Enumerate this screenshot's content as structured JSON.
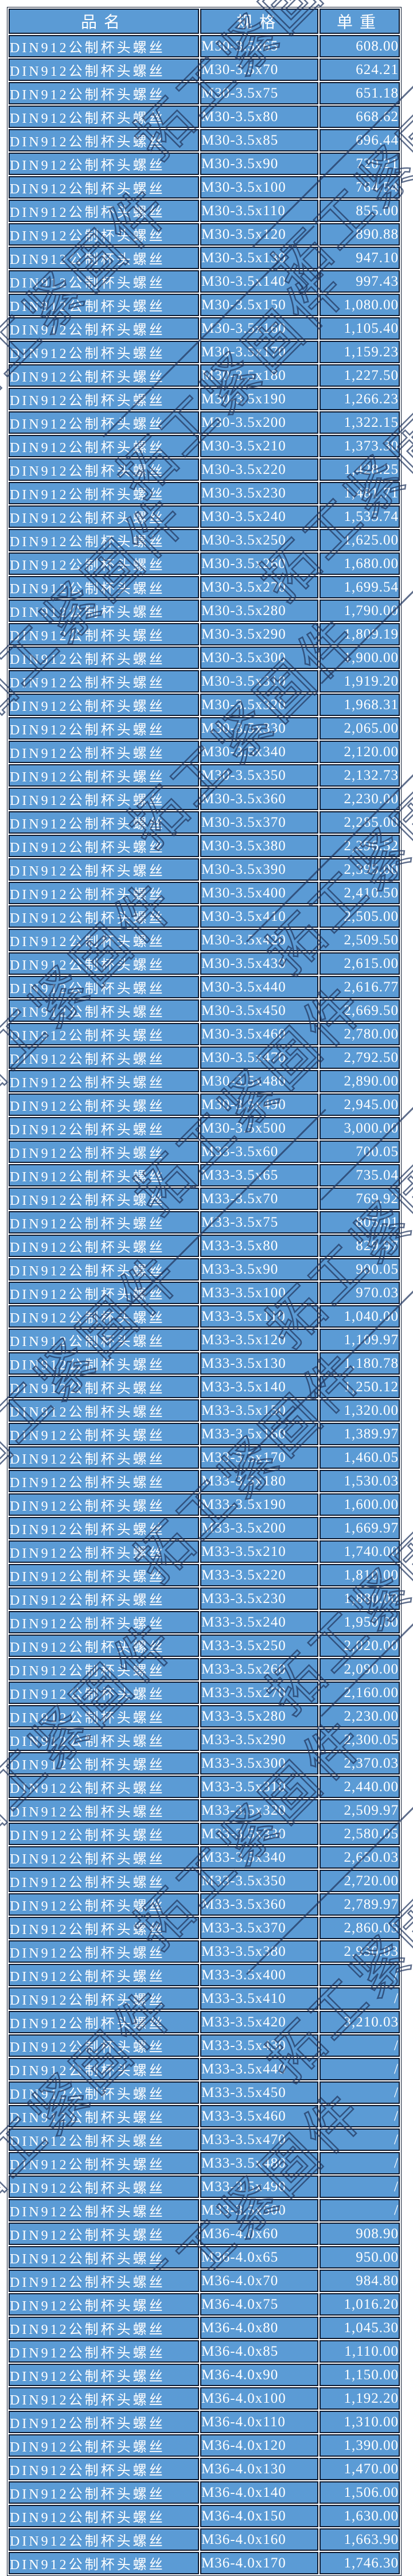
{
  "colors": {
    "cell_blue": "#5b9bd5",
    "border_dark": "#0e1a30",
    "text_white": "#ffffff",
    "watermark_navy": "#22375f",
    "page_background": "#ffffff"
  },
  "watermark": {
    "text": "拓工紧固件"
  },
  "table": {
    "headers": [
      "品名",
      "规格",
      "单重"
    ],
    "product_name": "DIN912公制杯头螺丝",
    "rows": [
      [
        "M30-3.5x65",
        "608.00"
      ],
      [
        "M30-3.5x70",
        "624.21"
      ],
      [
        "M30-3.5x75",
        "651.18"
      ],
      [
        "M30-3.5x80",
        "668.62"
      ],
      [
        "M30-3.5x85",
        "696.44"
      ],
      [
        "M30-3.5x90",
        "720.21"
      ],
      [
        "M30-3.5x100",
        "764.54"
      ],
      [
        "M30-3.5x110",
        "855.00"
      ],
      [
        "M30-3.5x120",
        "890.88"
      ],
      [
        "M30-3.5x130",
        "947.10"
      ],
      [
        "M30-3.5x140",
        "997.43"
      ],
      [
        "M30-3.5x150",
        "1,080.00"
      ],
      [
        "M30-3.5x160",
        "1,105.40"
      ],
      [
        "M30-3.5x170",
        "1,159.23"
      ],
      [
        "M30-3.5x180",
        "1,227.50"
      ],
      [
        "M30-3.5x190",
        "1,266.23"
      ],
      [
        "M30-3.5x200",
        "1,322.15"
      ],
      [
        "M30-3.5x210",
        "1,373.30"
      ],
      [
        "M30-3.5x220",
        "1,428.25"
      ],
      [
        "M30-3.5x230",
        "1,481.71"
      ],
      [
        "M30-3.5x240",
        "1,535.74"
      ],
      [
        "M30-3.5x250",
        "1,625.00"
      ],
      [
        "M30-3.5x260",
        "1,680.00"
      ],
      [
        "M30-3.5x270",
        "1,699.54"
      ],
      [
        "M30-3.5x280",
        "1,790.00"
      ],
      [
        "M30-3.5x290",
        "1,809.19"
      ],
      [
        "M30-3.5x300",
        "1,900.00"
      ],
      [
        "M30-3.5x310",
        "1,919.20"
      ],
      [
        "M30-3.5x320",
        "1,968.31"
      ],
      [
        "M30-3.5x330",
        "2,065.00"
      ],
      [
        "M30-3.5x340",
        "2,120.00"
      ],
      [
        "M30-3.5x350",
        "2,132.73"
      ],
      [
        "M30-3.5x360",
        "2,230.00"
      ],
      [
        "M30-3.5x370",
        "2,285.00"
      ],
      [
        "M30-3.5x380",
        "2,296.52"
      ],
      [
        "M30-3.5x390",
        "2,395.00"
      ],
      [
        "M30-3.5x400",
        "2,410.50"
      ],
      [
        "M30-3.5x410",
        "2,505.00"
      ],
      [
        "M30-3.5x420",
        "2,509.50"
      ],
      [
        "M30-3.5x430",
        "2,615.00"
      ],
      [
        "M30-3.5x440",
        "2,616.77"
      ],
      [
        "M30-3.5x450",
        "2,669.50"
      ],
      [
        "M30-3.5x460",
        "2,780.00"
      ],
      [
        "M30-3.5x470",
        "2,792.50"
      ],
      [
        "M30-3.5x480",
        "2,890.00"
      ],
      [
        "M30-3.5x490",
        "2,945.00"
      ],
      [
        "M30-3.5x500",
        "3,000.00"
      ],
      [
        "M33-3.5x60",
        "700.05"
      ],
      [
        "M33-3.5x65",
        "735.04"
      ],
      [
        "M33-3.5x70",
        "769.92"
      ],
      [
        "M33-3.5x75",
        "805.01"
      ],
      [
        "M33-3.5x80",
        "829.97"
      ],
      [
        "M33-3.5x90",
        "900.05"
      ],
      [
        "M33-3.5x100",
        "970.03"
      ],
      [
        "M33-3.5x110",
        "1,040.00"
      ],
      [
        "M33-3.5x120",
        "1,109.97"
      ],
      [
        "M33-3.5x130",
        "1,180.78"
      ],
      [
        "M33-3.5x140",
        "1,250.12"
      ],
      [
        "M33-3.5x150",
        "1,320.00"
      ],
      [
        "M33-3.5x160",
        "1,389.97"
      ],
      [
        "M33-3.5x170",
        "1,460.05"
      ],
      [
        "M33-3.5x180",
        "1,530.03"
      ],
      [
        "M33-3.5x190",
        "1,600.00"
      ],
      [
        "M33-3.5x200",
        "1,669.97"
      ],
      [
        "M33-3.5x210",
        "1,740.00"
      ],
      [
        "M33-3.5x220",
        "1,810.00"
      ],
      [
        "M33-3.5x230",
        "1,880.00"
      ],
      [
        "M33-3.5x240",
        "1,950.00"
      ],
      [
        "M33-3.5x250",
        "2,020.00"
      ],
      [
        "M33-3.5x260",
        "2,090.00"
      ],
      [
        "M33-3.5x270",
        "2,160.00"
      ],
      [
        "M33-3.5x280",
        "2,230.00"
      ],
      [
        "M33-3.5x290",
        "2,300.05"
      ],
      [
        "M33-3.5x300",
        "2,370.03"
      ],
      [
        "M33-3.5x310",
        "2,440.00"
      ],
      [
        "M33-3.5x320",
        "2,509.97"
      ],
      [
        "M33-3.5x330",
        "2,580.05"
      ],
      [
        "M33-3.5x340",
        "2,650.03"
      ],
      [
        "M33-3.5x350",
        "2,720.00"
      ],
      [
        "M33-3.5x360",
        "2,789.97"
      ],
      [
        "M33-3.5x370",
        "2,860.05"
      ],
      [
        "M33-3.5x380",
        "2,930.03"
      ],
      [
        "M33-3.5x400",
        "/"
      ],
      [
        "M33-3.5x410",
        "/"
      ],
      [
        "M33-3.5x420",
        "3,210.03"
      ],
      [
        "M33-3.5x430",
        "/"
      ],
      [
        "M33-3.5x440",
        "/"
      ],
      [
        "M33-3.5x450",
        "/"
      ],
      [
        "M33-3.5x460",
        "/"
      ],
      [
        "M33-3.5x470",
        "/"
      ],
      [
        "M33-3.5x480",
        "/"
      ],
      [
        "M33-3.5x490",
        "/"
      ],
      [
        "M33-3.5x500",
        "/"
      ],
      [
        "M36-4.0x60",
        "908.90"
      ],
      [
        "M36-4.0x65",
        "950.00"
      ],
      [
        "M36-4.0x70",
        "984.80"
      ],
      [
        "M36-4.0x75",
        "1,016.20"
      ],
      [
        "M36-4.0x80",
        "1,045.30"
      ],
      [
        "M36-4.0x85",
        "1,110.00"
      ],
      [
        "M36-4.0x90",
        "1,150.00"
      ],
      [
        "M36-4.0x100",
        "1,192.20"
      ],
      [
        "M36-4.0x110",
        "1,310.00"
      ],
      [
        "M36-4.0x120",
        "1,390.00"
      ],
      [
        "M36-4.0x130",
        "1,470.00"
      ],
      [
        "M36-4.0x140",
        "1,506.00"
      ],
      [
        "M36-4.0x150",
        "1,630.00"
      ],
      [
        "M36-4.0x160",
        "1,663.90"
      ],
      [
        "M36-4.0x170",
        "1,746.30"
      ]
    ]
  }
}
